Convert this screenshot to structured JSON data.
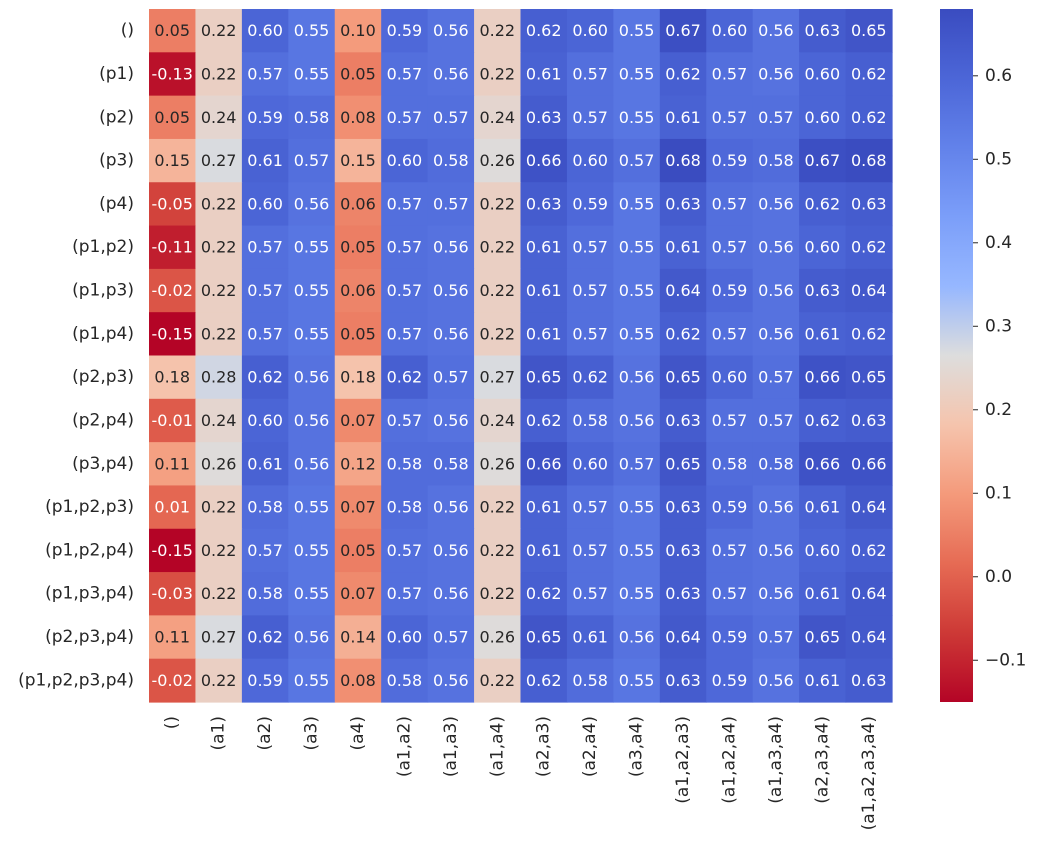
{
  "chart_data": {
    "type": "heatmap",
    "title": "",
    "xlabel": "",
    "ylabel": "",
    "x_categories": [
      "()",
      "(a1)",
      "(a2)",
      "(a3)",
      "(a4)",
      "(a1,a2)",
      "(a1,a3)",
      "(a1,a4)",
      "(a2,a3)",
      "(a2,a4)",
      "(a3,a4)",
      "(a1,a2,a3)",
      "(a1,a2,a4)",
      "(a1,a3,a4)",
      "(a2,a3,a4)",
      "(a1,a2,a3,a4)"
    ],
    "y_categories": [
      "()",
      "(p1)",
      "(p2)",
      "(p3)",
      "(p4)",
      "(p1,p2)",
      "(p1,p3)",
      "(p1,p4)",
      "(p2,p3)",
      "(p2,p4)",
      "(p3,p4)",
      "(p1,p2,p3)",
      "(p1,p2,p4)",
      "(p1,p3,p4)",
      "(p2,p3,p4)",
      "(p1,p2,p3,p4)"
    ],
    "values": [
      [
        0.05,
        0.22,
        0.6,
        0.55,
        0.1,
        0.59,
        0.56,
        0.22,
        0.62,
        0.6,
        0.55,
        0.67,
        0.6,
        0.56,
        0.63,
        0.65
      ],
      [
        -0.13,
        0.22,
        0.57,
        0.55,
        0.05,
        0.57,
        0.56,
        0.22,
        0.61,
        0.57,
        0.55,
        0.62,
        0.57,
        0.56,
        0.6,
        0.62
      ],
      [
        0.05,
        0.24,
        0.59,
        0.58,
        0.08,
        0.57,
        0.57,
        0.24,
        0.63,
        0.57,
        0.55,
        0.61,
        0.57,
        0.57,
        0.6,
        0.62
      ],
      [
        0.15,
        0.27,
        0.61,
        0.57,
        0.15,
        0.6,
        0.58,
        0.26,
        0.66,
        0.6,
        0.57,
        0.68,
        0.59,
        0.58,
        0.67,
        0.68
      ],
      [
        -0.05,
        0.22,
        0.6,
        0.56,
        0.06,
        0.57,
        0.57,
        0.22,
        0.63,
        0.59,
        0.55,
        0.63,
        0.57,
        0.56,
        0.62,
        0.63
      ],
      [
        -0.11,
        0.22,
        0.57,
        0.55,
        0.05,
        0.57,
        0.56,
        0.22,
        0.61,
        0.57,
        0.55,
        0.61,
        0.57,
        0.56,
        0.6,
        0.62
      ],
      [
        -0.02,
        0.22,
        0.57,
        0.55,
        0.06,
        0.57,
        0.56,
        0.22,
        0.61,
        0.57,
        0.55,
        0.64,
        0.59,
        0.56,
        0.63,
        0.64
      ],
      [
        -0.15,
        0.22,
        0.57,
        0.55,
        0.05,
        0.57,
        0.56,
        0.22,
        0.61,
        0.57,
        0.55,
        0.62,
        0.57,
        0.56,
        0.61,
        0.62
      ],
      [
        0.18,
        0.28,
        0.62,
        0.56,
        0.18,
        0.62,
        0.57,
        0.27,
        0.65,
        0.62,
        0.56,
        0.65,
        0.6,
        0.57,
        0.66,
        0.65
      ],
      [
        -0.01,
        0.24,
        0.6,
        0.56,
        0.07,
        0.57,
        0.56,
        0.24,
        0.62,
        0.58,
        0.56,
        0.63,
        0.57,
        0.57,
        0.62,
        0.63
      ],
      [
        0.11,
        0.26,
        0.61,
        0.56,
        0.12,
        0.58,
        0.58,
        0.26,
        0.66,
        0.6,
        0.57,
        0.65,
        0.58,
        0.58,
        0.66,
        0.66
      ],
      [
        0.01,
        0.22,
        0.58,
        0.55,
        0.07,
        0.58,
        0.56,
        0.22,
        0.61,
        0.57,
        0.55,
        0.63,
        0.59,
        0.56,
        0.61,
        0.64
      ],
      [
        -0.15,
        0.22,
        0.57,
        0.55,
        0.05,
        0.57,
        0.56,
        0.22,
        0.61,
        0.57,
        0.55,
        0.63,
        0.57,
        0.56,
        0.6,
        0.62
      ],
      [
        -0.03,
        0.22,
        0.58,
        0.55,
        0.07,
        0.57,
        0.56,
        0.22,
        0.62,
        0.57,
        0.55,
        0.63,
        0.57,
        0.56,
        0.61,
        0.64
      ],
      [
        0.11,
        0.27,
        0.62,
        0.56,
        0.14,
        0.6,
        0.57,
        0.26,
        0.65,
        0.61,
        0.56,
        0.64,
        0.59,
        0.57,
        0.65,
        0.64
      ],
      [
        -0.02,
        0.22,
        0.59,
        0.55,
        0.08,
        0.58,
        0.56,
        0.22,
        0.62,
        0.58,
        0.55,
        0.63,
        0.59,
        0.56,
        0.61,
        0.63
      ]
    ],
    "colormap": "coolwarm",
    "vmin": -0.15,
    "vmax": 0.68,
    "colorbar": {
      "ticks": [
        -0.1,
        0.0,
        0.1,
        0.2,
        0.3,
        0.4,
        0.5,
        0.6
      ],
      "tick_labels": [
        "−0.1",
        "0.0",
        "0.1",
        "0.2",
        "0.3",
        "0.4",
        "0.5",
        "0.6"
      ]
    },
    "annotation_format": "0.00",
    "grid": false
  }
}
